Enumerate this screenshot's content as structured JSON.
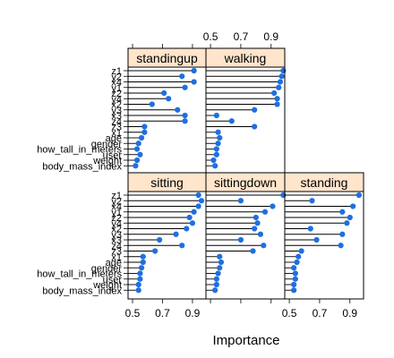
{
  "chart_data": {
    "type": "lollipop",
    "xlabel": "Importance",
    "xlim": [
      0.47,
      0.99
    ],
    "xticks": [
      0.5,
      0.7,
      0.9
    ],
    "variables": [
      "z1",
      "y2",
      "x4",
      "y1",
      "z2",
      "y4",
      "x2",
      "y3",
      "x3",
      "z4",
      "z3",
      "x1",
      "age",
      "gender",
      "how_tall_in_meters",
      "user",
      "weight",
      "body_mass_index"
    ],
    "panels": [
      {
        "name": "standingup",
        "values": [
          0.91,
          0.83,
          0.91,
          0.85,
          0.71,
          0.74,
          0.63,
          0.8,
          0.85,
          0.85,
          0.58,
          0.58,
          0.56,
          0.54,
          0.53,
          0.55,
          0.53,
          0.52
        ]
      },
      {
        "name": "walking",
        "values": [
          0.98,
          0.97,
          0.96,
          0.95,
          0.92,
          0.94,
          0.94,
          0.79,
          0.54,
          0.64,
          0.79,
          0.55,
          0.56,
          0.55,
          0.54,
          0.54,
          0.52,
          0.53
        ]
      },
      {
        "name": "sitting",
        "values": [
          0.94,
          0.96,
          0.94,
          0.91,
          0.88,
          0.9,
          0.86,
          0.79,
          0.68,
          0.83,
          0.65,
          0.57,
          0.57,
          0.56,
          0.55,
          0.55,
          0.54,
          0.54
        ]
      },
      {
        "name": "sittingdown",
        "values": [
          0.98,
          0.7,
          0.91,
          0.86,
          0.8,
          0.81,
          0.79,
          0.83,
          0.7,
          0.85,
          0.78,
          0.56,
          0.57,
          0.56,
          0.55,
          0.54,
          0.54,
          0.53
        ]
      },
      {
        "name": "standing",
        "values": [
          0.96,
          0.65,
          0.92,
          0.85,
          0.9,
          0.88,
          0.64,
          0.85,
          0.68,
          0.84,
          0.58,
          0.56,
          0.55,
          0.53,
          0.54,
          0.54,
          0.53,
          0.53
        ]
      }
    ],
    "colors": {
      "strip": "#ffe5cc",
      "point": "#1f6fe0",
      "stem": "#000000"
    }
  }
}
